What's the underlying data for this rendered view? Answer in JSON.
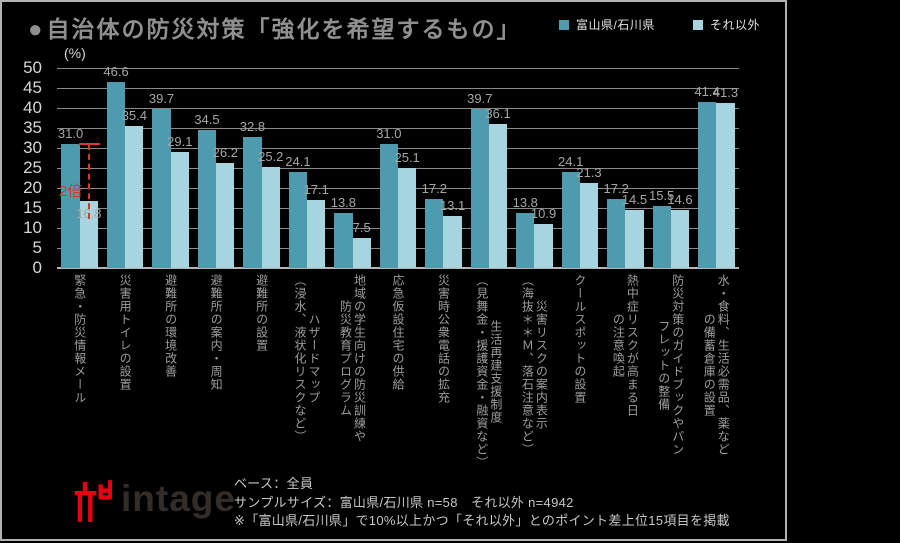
{
  "title": {
    "bullet": "●",
    "text": "自治体の防災対策「強化を希望するもの」"
  },
  "legend": [
    {
      "label": "富山県/石川県",
      "color": "#4d9bac"
    },
    {
      "label": "それ以外",
      "color": "#a6d4df"
    }
  ],
  "chart_data": {
    "type": "bar",
    "title": "自治体の防災対策「強化を希望するもの」",
    "unit_label": "(%)",
    "ylim": [
      0,
      50
    ],
    "ytick_step": 5,
    "grid": true,
    "legend_position": "top-right",
    "categories": [
      "緊急・防災情報メール",
      "災害用トイレの設置",
      "避難所の環境改善",
      "避難所の案内・周知",
      "避難所の設置",
      "ハザードマップ\n（浸水、液状化リスクなど）",
      "地域の学生向けの防災訓練や\n防災教育プログラム",
      "応急仮設住宅の供給",
      "災害時公衆電話の拡充",
      "生活再建支援制度\n（見舞金・援護資金・融資など）",
      "災害リスクの案内表示\n（海抜＊＊Ｍ、落石注意など）",
      "クールスポットの設置",
      "熱中症リスクが高まる日\nの注意喚起",
      "防災対策のガイドブックやパン\nフレットの整備",
      "水・食料、生活必需品、薬など\nの備蓄倉庫の設置"
    ],
    "series": [
      {
        "name": "富山県/石川県",
        "color": "#4d9bac",
        "values": [
          31.0,
          46.6,
          39.7,
          34.5,
          32.8,
          24.1,
          13.8,
          31.0,
          17.2,
          39.7,
          13.8,
          24.1,
          17.2,
          15.5,
          41.4
        ]
      },
      {
        "name": "それ以外",
        "color": "#a6d4df",
        "values": [
          16.8,
          35.4,
          29.1,
          26.2,
          25.2,
          17.1,
          7.5,
          25.1,
          13.1,
          36.1,
          10.9,
          21.3,
          14.5,
          14.6,
          41.3
        ]
      }
    ],
    "annotation": {
      "text": "2倍",
      "color": "#d8392c",
      "category_index": 0
    }
  },
  "footer": {
    "lines": [
      "ベース：全員",
      "サンプルサイズ：富山県/石川県 n=58　それ以外 n=4942",
      "※「富山県/石川県」で10%以上かつ「それ以外」とのポイント差上位15項目を掲載"
    ]
  },
  "logo": {
    "text": "intage",
    "mark_color": "#e60012"
  }
}
